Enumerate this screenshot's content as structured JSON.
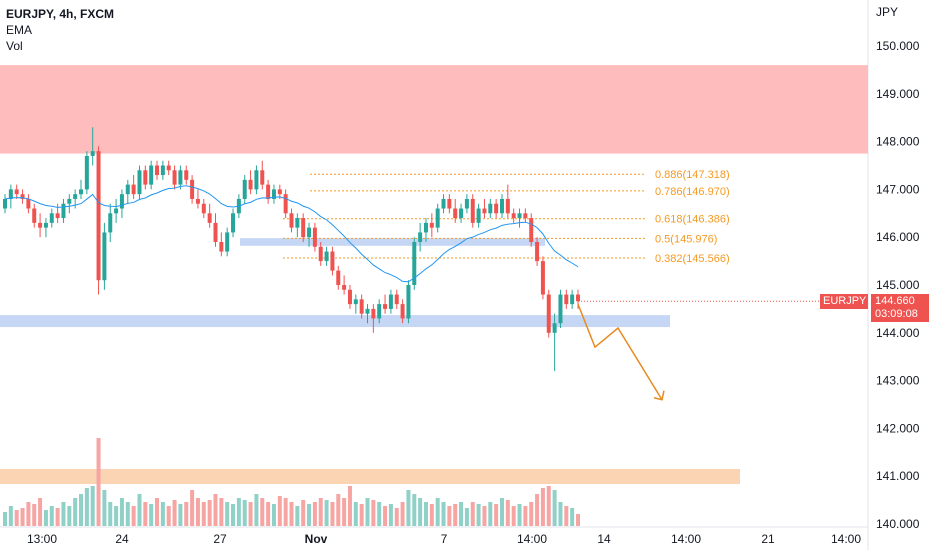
{
  "legend": {
    "symbol": "EURJPY, 4h, FXCM",
    "ema_label": "EMA",
    "vol_label": "Vol"
  },
  "colors": {
    "up": "#26a69a",
    "down": "#ef5350",
    "up_vol": "#8fd0c7",
    "down_vol": "#f6a5a3",
    "supply_zone": "#ffbcbc",
    "level": "#c6d7f5",
    "ema": "#2196f3",
    "fib": "#f59a23",
    "projection": "#e88a1f",
    "vol_zone": "#fbd4b3",
    "axis_text": "#131722"
  },
  "chart_data": {
    "type": "candlestick",
    "symbol": "EURJPY",
    "timeframe": "4h",
    "source": "FXCM",
    "yaxis_unit": "JPY",
    "ylim": [
      139.9,
      151.1
    ],
    "yticks": [
      "140.000",
      "141.000",
      "142.000",
      "143.000",
      "144.000",
      "145.000",
      "146.000",
      "147.000",
      "148.000",
      "149.000",
      "150.000"
    ],
    "xticks": [
      "13:00",
      "24",
      "27",
      "Nov",
      "7",
      "14:00",
      "14",
      "14:00",
      "21",
      "14:00"
    ],
    "last_price": {
      "symbol_label": "EURJPY",
      "value": "144.660",
      "countdown": "03:09:08"
    },
    "zones": [
      {
        "name": "supply-zone",
        "from": 147.75,
        "to": 149.6
      },
      {
        "name": "support-level",
        "from": 144.12,
        "to": 144.37
      },
      {
        "name": "resistance-level",
        "from": 145.82,
        "to": 145.98
      }
    ],
    "fib_levels": [
      {
        "label": "0.886(147.318)",
        "price": 147.318
      },
      {
        "label": "0.786(146.970)",
        "price": 146.97
      },
      {
        "label": "0.618(146.386)",
        "price": 146.386
      },
      {
        "label": "0.5(145.976)",
        "price": 145.976
      },
      {
        "label": "0.382(145.566)",
        "price": 145.566
      }
    ],
    "projection_path": [
      144.6,
      143.7,
      144.1,
      142.6
    ],
    "candles": [
      [
        146.6,
        146.9,
        146.5,
        146.8
      ],
      [
        146.8,
        147.1,
        146.6,
        147.0
      ],
      [
        147.0,
        147.1,
        146.8,
        146.9
      ],
      [
        146.9,
        147.0,
        146.7,
        146.8
      ],
      [
        146.8,
        146.9,
        146.5,
        146.6
      ],
      [
        146.6,
        146.7,
        146.2,
        146.3
      ],
      [
        146.3,
        146.5,
        146.0,
        146.2
      ],
      [
        146.2,
        146.4,
        146.0,
        146.3
      ],
      [
        146.3,
        146.6,
        146.2,
        146.5
      ],
      [
        146.5,
        146.7,
        146.3,
        146.4
      ],
      [
        146.4,
        146.8,
        146.3,
        146.7
      ],
      [
        146.7,
        146.9,
        146.5,
        146.8
      ],
      [
        146.8,
        147.0,
        146.6,
        146.9
      ],
      [
        146.9,
        147.2,
        146.8,
        147.0
      ],
      [
        147.0,
        147.8,
        146.9,
        147.7
      ],
      [
        147.7,
        148.3,
        147.5,
        147.8
      ],
      [
        147.8,
        147.9,
        144.8,
        145.1
      ],
      [
        145.1,
        146.3,
        144.9,
        146.1
      ],
      [
        146.1,
        146.7,
        145.9,
        146.5
      ],
      [
        146.5,
        146.8,
        146.3,
        146.6
      ],
      [
        146.6,
        147.0,
        146.4,
        146.9
      ],
      [
        146.9,
        147.2,
        146.7,
        147.1
      ],
      [
        147.1,
        147.3,
        146.8,
        146.9
      ],
      [
        146.9,
        147.5,
        146.8,
        147.4
      ],
      [
        147.4,
        147.5,
        147.0,
        147.1
      ],
      [
        147.1,
        147.6,
        147.0,
        147.5
      ],
      [
        147.5,
        147.6,
        147.2,
        147.3
      ],
      [
        147.3,
        147.6,
        147.2,
        147.5
      ],
      [
        147.5,
        147.6,
        147.3,
        147.4
      ],
      [
        147.4,
        147.5,
        147.0,
        147.1
      ],
      [
        147.1,
        147.5,
        147.0,
        147.4
      ],
      [
        147.4,
        147.5,
        147.1,
        147.2
      ],
      [
        147.2,
        147.3,
        146.7,
        146.8
      ],
      [
        146.8,
        147.0,
        146.6,
        146.7
      ],
      [
        146.7,
        146.8,
        146.4,
        146.5
      ],
      [
        146.5,
        146.7,
        146.2,
        146.3
      ],
      [
        146.3,
        146.5,
        145.8,
        145.9
      ],
      [
        145.9,
        146.1,
        145.6,
        145.7
      ],
      [
        145.7,
        146.2,
        145.6,
        146.1
      ],
      [
        146.1,
        146.6,
        146.0,
        146.5
      ],
      [
        146.5,
        146.9,
        146.4,
        146.8
      ],
      [
        146.8,
        147.3,
        146.7,
        147.2
      ],
      [
        147.2,
        147.4,
        146.9,
        147.0
      ],
      [
        147.0,
        147.5,
        146.9,
        147.4
      ],
      [
        147.4,
        147.6,
        147.0,
        147.1
      ],
      [
        147.1,
        147.2,
        146.7,
        146.8
      ],
      [
        146.8,
        147.1,
        146.7,
        147.0
      ],
      [
        147.0,
        147.1,
        146.8,
        146.9
      ],
      [
        146.9,
        147.0,
        146.4,
        146.5
      ],
      [
        146.5,
        146.6,
        146.1,
        146.2
      ],
      [
        146.2,
        146.5,
        146.0,
        146.4
      ],
      [
        146.4,
        146.5,
        145.9,
        146.0
      ],
      [
        146.0,
        146.3,
        145.8,
        146.2
      ],
      [
        146.2,
        146.3,
        145.7,
        145.8
      ],
      [
        145.8,
        145.9,
        145.4,
        145.5
      ],
      [
        145.5,
        145.8,
        145.4,
        145.7
      ],
      [
        145.7,
        145.8,
        145.2,
        145.3
      ],
      [
        145.3,
        145.4,
        144.9,
        145.0
      ],
      [
        145.0,
        145.2,
        144.8,
        144.9
      ],
      [
        144.9,
        145.0,
        144.5,
        144.6
      ],
      [
        144.6,
        144.8,
        144.4,
        144.7
      ],
      [
        144.7,
        144.8,
        144.3,
        144.4
      ],
      [
        144.4,
        144.6,
        144.2,
        144.5
      ],
      [
        144.5,
        144.6,
        144.0,
        144.3
      ],
      [
        144.3,
        144.7,
        144.2,
        144.6
      ],
      [
        144.6,
        144.8,
        144.4,
        144.5
      ],
      [
        144.5,
        144.9,
        144.4,
        144.8
      ],
      [
        144.8,
        144.9,
        144.5,
        144.6
      ],
      [
        144.6,
        144.7,
        144.2,
        144.3
      ],
      [
        144.3,
        145.1,
        144.2,
        145.0
      ],
      [
        145.0,
        146.0,
        144.9,
        145.9
      ],
      [
        145.9,
        146.3,
        145.7,
        146.1
      ],
      [
        146.1,
        146.4,
        145.9,
        146.3
      ],
      [
        146.3,
        146.5,
        146.0,
        146.2
      ],
      [
        146.2,
        146.7,
        146.1,
        146.6
      ],
      [
        146.6,
        146.9,
        146.5,
        146.8
      ],
      [
        146.8,
        146.9,
        146.5,
        146.6
      ],
      [
        146.6,
        146.8,
        146.3,
        146.4
      ],
      [
        146.4,
        146.7,
        146.3,
        146.6
      ],
      [
        146.6,
        146.9,
        146.5,
        146.8
      ],
      [
        146.8,
        146.9,
        146.2,
        146.3
      ],
      [
        146.3,
        146.7,
        146.2,
        146.6
      ],
      [
        146.6,
        146.8,
        146.4,
        146.5
      ],
      [
        146.5,
        146.8,
        146.4,
        146.7
      ],
      [
        146.7,
        146.8,
        146.4,
        146.5
      ],
      [
        146.5,
        146.9,
        146.4,
        146.8
      ],
      [
        146.8,
        147.1,
        146.4,
        146.5
      ],
      [
        146.5,
        146.6,
        146.3,
        146.4
      ],
      [
        146.4,
        146.6,
        146.2,
        146.5
      ],
      [
        146.5,
        146.6,
        146.3,
        146.4
      ],
      [
        146.4,
        146.5,
        145.8,
        145.9
      ],
      [
        145.9,
        146.0,
        145.4,
        145.5
      ],
      [
        145.5,
        145.6,
        144.7,
        144.8
      ],
      [
        144.8,
        144.9,
        143.9,
        144.0
      ],
      [
        144.0,
        144.4,
        143.2,
        144.2
      ],
      [
        144.2,
        144.9,
        144.1,
        144.8
      ],
      [
        144.8,
        144.9,
        144.5,
        144.6
      ],
      [
        144.6,
        144.9,
        144.5,
        144.8
      ],
      [
        144.8,
        144.9,
        144.5,
        144.66
      ]
    ],
    "volume_rel": [
      0.35,
      0.5,
      0.4,
      0.45,
      0.6,
      0.55,
      0.7,
      0.4,
      0.5,
      0.45,
      0.6,
      0.5,
      0.7,
      0.8,
      0.95,
      1.0,
      2.2,
      0.9,
      0.6,
      0.5,
      0.7,
      0.6,
      0.5,
      0.8,
      0.6,
      0.55,
      0.7,
      0.6,
      0.5,
      0.65,
      0.55,
      0.6,
      0.9,
      0.7,
      0.6,
      0.65,
      0.8,
      0.7,
      0.6,
      0.55,
      0.7,
      0.65,
      0.6,
      0.8,
      0.7,
      0.6,
      0.55,
      0.75,
      0.7,
      0.6,
      0.5,
      0.65,
      0.55,
      0.6,
      0.7,
      0.65,
      0.6,
      0.8,
      0.7,
      1.0,
      0.6,
      0.55,
      0.7,
      0.65,
      0.6,
      0.5,
      0.55,
      0.45,
      0.6,
      0.9,
      0.8,
      0.7,
      0.6,
      0.55,
      0.7,
      0.6,
      0.5,
      0.55,
      0.6,
      0.45,
      0.6,
      0.55,
      0.5,
      0.6,
      0.55,
      0.7,
      0.65,
      0.5,
      0.55,
      0.5,
      0.6,
      0.8,
      0.95,
      1.0,
      0.9,
      0.6,
      0.5,
      0.45,
      0.3
    ]
  }
}
